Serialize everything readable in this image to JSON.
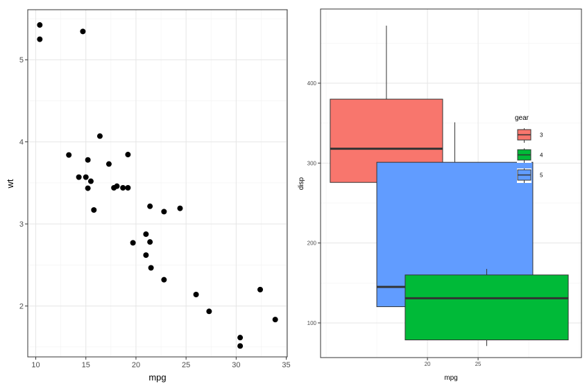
{
  "chart_data": [
    {
      "type": "scatter",
      "xlabel": "mpg",
      "ylabel": "wt",
      "xlim": [
        9.2,
        35.1
      ],
      "ylim": [
        1.38,
        5.61
      ],
      "x_ticks": [
        10,
        15,
        20,
        25,
        30,
        35
      ],
      "y_ticks": [
        2,
        3,
        4,
        5
      ],
      "grid": true,
      "point_color": "#000000",
      "points": [
        {
          "x": 21.0,
          "y": 2.62
        },
        {
          "x": 21.0,
          "y": 2.875
        },
        {
          "x": 22.8,
          "y": 2.32
        },
        {
          "x": 21.4,
          "y": 3.215
        },
        {
          "x": 18.7,
          "y": 3.44
        },
        {
          "x": 18.1,
          "y": 3.46
        },
        {
          "x": 14.3,
          "y": 3.57
        },
        {
          "x": 24.4,
          "y": 3.19
        },
        {
          "x": 22.8,
          "y": 3.15
        },
        {
          "x": 19.2,
          "y": 3.44
        },
        {
          "x": 17.8,
          "y": 3.44
        },
        {
          "x": 16.4,
          "y": 4.07
        },
        {
          "x": 17.3,
          "y": 3.73
        },
        {
          "x": 15.2,
          "y": 3.78
        },
        {
          "x": 10.4,
          "y": 5.25
        },
        {
          "x": 10.4,
          "y": 5.424
        },
        {
          "x": 14.7,
          "y": 5.345
        },
        {
          "x": 32.4,
          "y": 2.2
        },
        {
          "x": 30.4,
          "y": 1.615
        },
        {
          "x": 33.9,
          "y": 1.835
        },
        {
          "x": 21.5,
          "y": 2.465
        },
        {
          "x": 15.5,
          "y": 3.52
        },
        {
          "x": 15.2,
          "y": 3.435
        },
        {
          "x": 13.3,
          "y": 3.84
        },
        {
          "x": 19.2,
          "y": 3.845
        },
        {
          "x": 27.3,
          "y": 1.935
        },
        {
          "x": 26.0,
          "y": 2.14
        },
        {
          "x": 30.4,
          "y": 1.513
        },
        {
          "x": 15.8,
          "y": 3.17
        },
        {
          "x": 19.7,
          "y": 2.77
        },
        {
          "x": 15.0,
          "y": 3.57
        },
        {
          "x": 21.4,
          "y": 2.78
        }
      ]
    },
    {
      "type": "box",
      "xlabel": "mpg",
      "ylabel": "disp",
      "xlim": [
        9.45,
        35.2
      ],
      "ylim": [
        56.6,
        492.8
      ],
      "x_ticks": [
        20,
        25
      ],
      "y_ticks": [
        100,
        200,
        300,
        400
      ],
      "grid": true,
      "legend": {
        "title": "gear",
        "position": "top-right"
      },
      "boxes": [
        {
          "group": "3",
          "color": "#F8766D",
          "x_min": 10.4,
          "x_max": 21.5,
          "whisker_low": 120.1,
          "q1": 275.8,
          "median": 318.0,
          "q3": 380.0,
          "whisker_high": 472.0
        },
        {
          "group": "5",
          "color": "#619CFF",
          "x_min": 15.0,
          "x_max": 30.4,
          "whisker_low": 95.1,
          "q1": 120.3,
          "median": 145.0,
          "q3": 301.0,
          "whisker_high": 351.0
        },
        {
          "group": "4",
          "color": "#00BA38",
          "x_min": 17.8,
          "x_max": 33.9,
          "whisker_low": 71.1,
          "q1": 78.7,
          "median": 130.9,
          "q3": 160.0,
          "whisker_high": 167.6
        }
      ],
      "legend_entries": [
        {
          "label": "3",
          "color": "#F8766D"
        },
        {
          "label": "4",
          "color": "#00BA38"
        },
        {
          "label": "5",
          "color": "#619CFF"
        }
      ]
    }
  ]
}
